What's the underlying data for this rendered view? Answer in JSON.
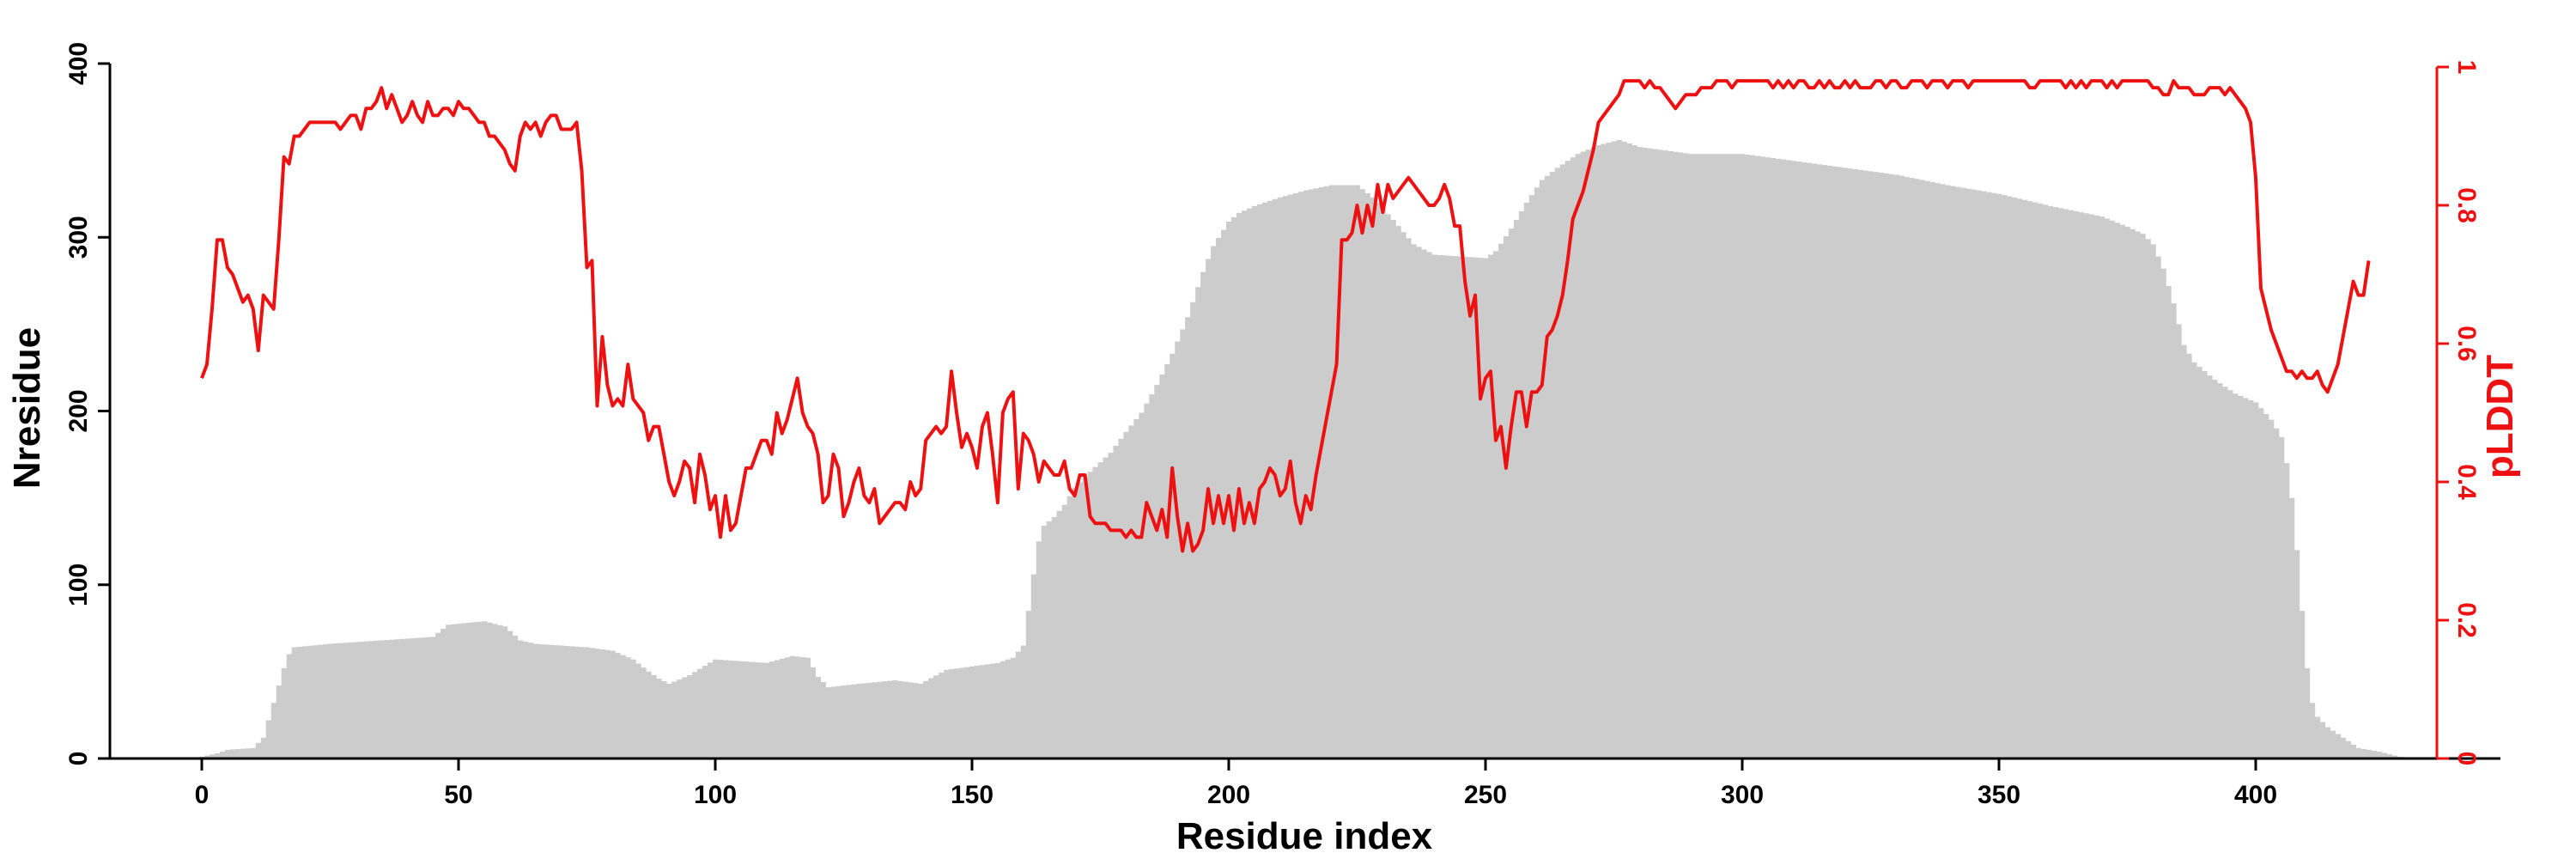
{
  "chart_data": {
    "type": "bar+line",
    "xlabel": "Residue index",
    "ylabel_left": "Nresidue",
    "ylabel_right": "pLDDT",
    "xlim": [
      -17,
      446
    ],
    "ylim_left": [
      0,
      400
    ],
    "ylim_right": [
      0,
      1
    ],
    "xticks": [
      "0",
      "50",
      "100",
      "150",
      "200",
      "250",
      "300",
      "350",
      "400"
    ],
    "yticks_left": [
      "0",
      "100",
      "200",
      "300",
      "400"
    ],
    "yticks_right": [
      "0",
      "0.2",
      "0.4",
      "0.6",
      "0.8",
      "1"
    ],
    "colors": {
      "bars": "#cccccc",
      "line": "#ee1111",
      "left_axis": "#000000",
      "right_axis": "#ee1111"
    },
    "bars_keypoints": [
      [
        0,
        1
      ],
      [
        3,
        3
      ],
      [
        5,
        5
      ],
      [
        10,
        6
      ],
      [
        12,
        12
      ],
      [
        13,
        22
      ],
      [
        14,
        32
      ],
      [
        15,
        42
      ],
      [
        16,
        52
      ],
      [
        17,
        60
      ],
      [
        18,
        64
      ],
      [
        25,
        66
      ],
      [
        35,
        68
      ],
      [
        45,
        70
      ],
      [
        48,
        77
      ],
      [
        55,
        79
      ],
      [
        59,
        76
      ],
      [
        62,
        68
      ],
      [
        65,
        66
      ],
      [
        70,
        65
      ],
      [
        75,
        64
      ],
      [
        80,
        62
      ],
      [
        84,
        57
      ],
      [
        87,
        50
      ],
      [
        89,
        46
      ],
      [
        91,
        43
      ],
      [
        95,
        48
      ],
      [
        100,
        57
      ],
      [
        105,
        56
      ],
      [
        110,
        55
      ],
      [
        115,
        59
      ],
      [
        118,
        58
      ],
      [
        120,
        47
      ],
      [
        122,
        41
      ],
      [
        128,
        43
      ],
      [
        135,
        45
      ],
      [
        140,
        43
      ],
      [
        145,
        51
      ],
      [
        150,
        53
      ],
      [
        155,
        55
      ],
      [
        158,
        58
      ],
      [
        160,
        65
      ],
      [
        161,
        85
      ],
      [
        162,
        106
      ],
      [
        163,
        125
      ],
      [
        164,
        134
      ],
      [
        166,
        139
      ],
      [
        168,
        146
      ],
      [
        170,
        156
      ],
      [
        173,
        165
      ],
      [
        177,
        176
      ],
      [
        180,
        188
      ],
      [
        183,
        199
      ],
      [
        186,
        215
      ],
      [
        189,
        233
      ],
      [
        192,
        254
      ],
      [
        195,
        280
      ],
      [
        197,
        295
      ],
      [
        200,
        309
      ],
      [
        202,
        314
      ],
      [
        205,
        318
      ],
      [
        210,
        323
      ],
      [
        215,
        327
      ],
      [
        220,
        330
      ],
      [
        225,
        330
      ],
      [
        228,
        323
      ],
      [
        232,
        310
      ],
      [
        236,
        296
      ],
      [
        240,
        290
      ],
      [
        245,
        289
      ],
      [
        250,
        288
      ],
      [
        252,
        292
      ],
      [
        255,
        305
      ],
      [
        258,
        320
      ],
      [
        261,
        333
      ],
      [
        264,
        340
      ],
      [
        268,
        348
      ],
      [
        272,
        353
      ],
      [
        276,
        356
      ],
      [
        280,
        352
      ],
      [
        285,
        350
      ],
      [
        290,
        348
      ],
      [
        300,
        348
      ],
      [
        310,
        344
      ],
      [
        320,
        340
      ],
      [
        330,
        336
      ],
      [
        340,
        330
      ],
      [
        350,
        325
      ],
      [
        360,
        318
      ],
      [
        370,
        312
      ],
      [
        375,
        306
      ],
      [
        378,
        302
      ],
      [
        380,
        296
      ],
      [
        382,
        282
      ],
      [
        384,
        262
      ],
      [
        386,
        238
      ],
      [
        388,
        228
      ],
      [
        392,
        218
      ],
      [
        396,
        210
      ],
      [
        400,
        205
      ],
      [
        403,
        195
      ],
      [
        405,
        185
      ],
      [
        406,
        170
      ],
      [
        407,
        150
      ],
      [
        408,
        120
      ],
      [
        409,
        85
      ],
      [
        410,
        52
      ],
      [
        411,
        32
      ],
      [
        412,
        24
      ],
      [
        414,
        18
      ],
      [
        416,
        14
      ],
      [
        418,
        10
      ],
      [
        420,
        6
      ],
      [
        424,
        4
      ],
      [
        428,
        1
      ]
    ],
    "line_values": [
      0.55,
      0.57,
      0.65,
      0.75,
      0.75,
      0.71,
      0.7,
      0.68,
      0.66,
      0.67,
      0.65,
      0.59,
      0.67,
      0.66,
      0.65,
      0.75,
      0.87,
      0.86,
      0.9,
      0.9,
      0.91,
      0.92,
      0.92,
      0.92,
      0.92,
      0.92,
      0.92,
      0.91,
      0.92,
      0.93,
      0.93,
      0.91,
      0.94,
      0.94,
      0.95,
      0.97,
      0.94,
      0.96,
      0.94,
      0.92,
      0.93,
      0.95,
      0.93,
      0.92,
      0.95,
      0.93,
      0.93,
      0.94,
      0.94,
      0.93,
      0.95,
      0.94,
      0.94,
      0.93,
      0.92,
      0.92,
      0.9,
      0.9,
      0.89,
      0.88,
      0.86,
      0.85,
      0.9,
      0.92,
      0.91,
      0.92,
      0.9,
      0.92,
      0.93,
      0.93,
      0.91,
      0.91,
      0.91,
      0.92,
      0.85,
      0.71,
      0.72,
      0.51,
      0.61,
      0.54,
      0.51,
      0.52,
      0.51,
      0.57,
      0.52,
      0.51,
      0.5,
      0.46,
      0.48,
      0.48,
      0.44,
      0.4,
      0.38,
      0.4,
      0.43,
      0.42,
      0.37,
      0.44,
      0.41,
      0.36,
      0.38,
      0.32,
      0.38,
      0.33,
      0.34,
      0.38,
      0.42,
      0.42,
      0.44,
      0.46,
      0.46,
      0.44,
      0.5,
      0.47,
      0.49,
      0.52,
      0.55,
      0.5,
      0.48,
      0.47,
      0.44,
      0.37,
      0.38,
      0.44,
      0.42,
      0.35,
      0.37,
      0.4,
      0.42,
      0.38,
      0.37,
      0.39,
      0.34,
      0.35,
      0.36,
      0.37,
      0.37,
      0.36,
      0.4,
      0.38,
      0.39,
      0.46,
      0.47,
      0.48,
      0.47,
      0.48,
      0.56,
      0.5,
      0.45,
      0.47,
      0.45,
      0.42,
      0.48,
      0.5,
      0.44,
      0.37,
      0.5,
      0.52,
      0.53,
      0.39,
      0.47,
      0.46,
      0.44,
      0.4,
      0.43,
      0.42,
      0.41,
      0.41,
      0.43,
      0.39,
      0.38,
      0.41,
      0.41,
      0.35,
      0.34,
      0.34,
      0.34,
      0.33,
      0.33,
      0.33,
      0.32,
      0.33,
      0.32,
      0.32,
      0.37,
      0.35,
      0.33,
      0.36,
      0.32,
      0.42,
      0.35,
      0.3,
      0.34,
      0.3,
      0.31,
      0.33,
      0.39,
      0.34,
      0.38,
      0.34,
      0.38,
      0.33,
      0.39,
      0.34,
      0.37,
      0.34,
      0.39,
      0.4,
      0.42,
      0.41,
      0.38,
      0.39,
      0.43,
      0.37,
      0.34,
      0.38,
      0.36,
      0.41,
      0.45,
      0.49,
      0.53,
      0.57,
      0.75,
      0.75,
      0.76,
      0.8,
      0.76,
      0.8,
      0.77,
      0.83,
      0.79,
      0.83,
      0.81,
      0.82,
      0.83,
      0.84,
      0.83,
      0.82,
      0.81,
      0.8,
      0.8,
      0.81,
      0.83,
      0.81,
      0.77,
      0.77,
      0.69,
      0.64,
      0.67,
      0.52,
      0.55,
      0.56,
      0.46,
      0.48,
      0.42,
      0.48,
      0.53,
      0.53,
      0.48,
      0.53,
      0.53,
      0.54,
      0.61,
      0.62,
      0.64,
      0.67,
      0.72,
      0.78,
      0.8,
      0.82,
      0.85,
      0.88,
      0.92,
      0.93,
      0.94,
      0.95,
      0.96,
      0.98,
      0.98,
      0.98,
      0.98,
      0.97,
      0.98,
      0.97,
      0.97,
      0.96,
      0.95,
      0.94,
      0.95,
      0.96,
      0.96,
      0.96,
      0.97,
      0.97,
      0.97,
      0.98,
      0.98,
      0.98,
      0.97,
      0.98,
      0.98,
      0.98,
      0.98,
      0.98,
      0.98,
      0.98,
      0.97,
      0.98,
      0.97,
      0.98,
      0.97,
      0.98,
      0.98,
      0.97,
      0.97,
      0.98,
      0.97,
      0.98,
      0.97,
      0.97,
      0.98,
      0.97,
      0.98,
      0.97,
      0.97,
      0.97,
      0.98,
      0.98,
      0.97,
      0.98,
      0.98,
      0.97,
      0.97,
      0.98,
      0.98,
      0.98,
      0.97,
      0.98,
      0.98,
      0.98,
      0.97,
      0.98,
      0.98,
      0.98,
      0.97,
      0.98,
      0.98,
      0.98,
      0.98,
      0.98,
      0.98,
      0.98,
      0.98,
      0.98,
      0.98,
      0.98,
      0.97,
      0.97,
      0.98,
      0.98,
      0.98,
      0.98,
      0.98,
      0.97,
      0.98,
      0.97,
      0.98,
      0.97,
      0.98,
      0.98,
      0.98,
      0.97,
      0.98,
      0.97,
      0.98,
      0.98,
      0.98,
      0.98,
      0.98,
      0.98,
      0.97,
      0.97,
      0.96,
      0.96,
      0.98,
      0.97,
      0.97,
      0.97,
      0.96,
      0.96,
      0.96,
      0.97,
      0.97,
      0.97,
      0.96,
      0.97,
      0.96,
      0.95,
      0.94,
      0.92,
      0.84,
      0.68,
      0.65,
      0.62,
      0.6,
      0.58,
      0.56,
      0.56,
      0.55,
      0.56,
      0.55,
      0.55,
      0.56,
      0.54,
      0.53,
      0.55,
      0.57,
      0.61,
      0.65,
      0.69,
      0.67,
      0.67,
      0.72
    ]
  }
}
